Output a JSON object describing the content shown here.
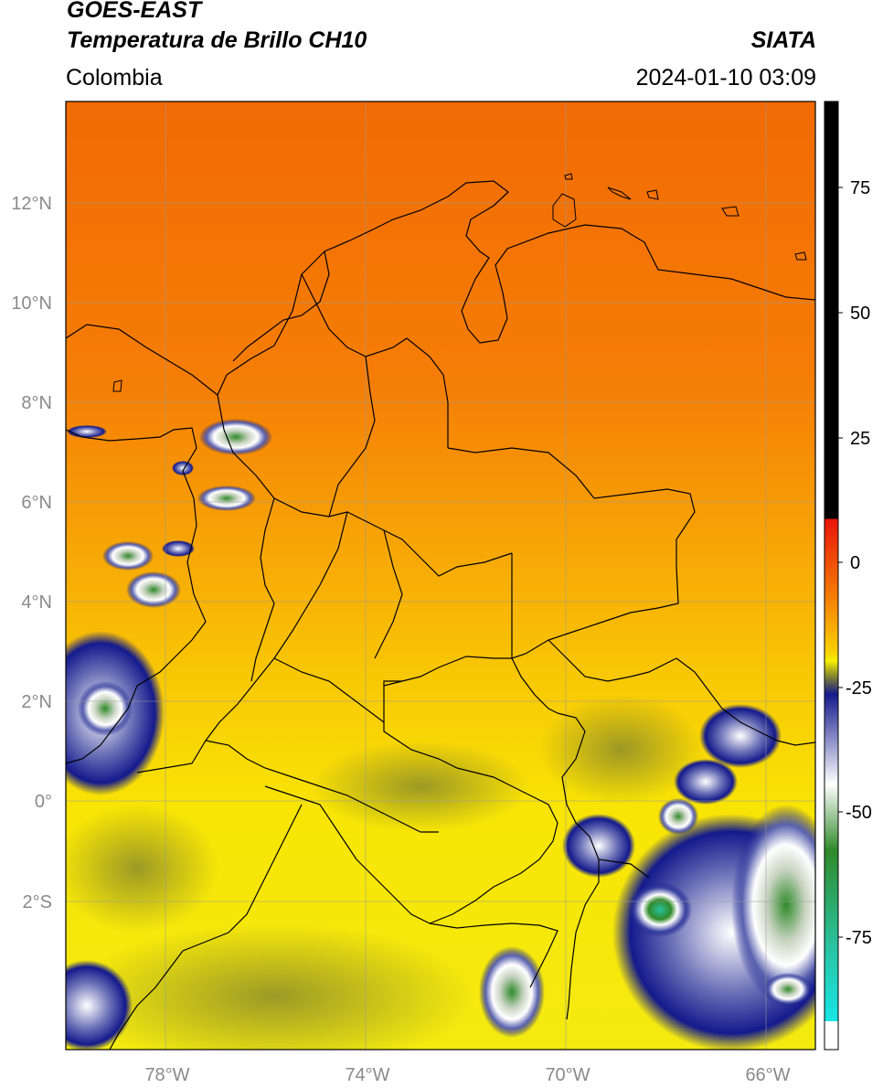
{
  "header": {
    "satellite": "GOES-EAST",
    "product": "Temperatura de Brillo CH10",
    "region": "Colombia",
    "agency": "SIATA",
    "datetime": "2024-01-10 03:09"
  },
  "map": {
    "lon_range": [
      -80,
      -65
    ],
    "lat_range": [
      -5,
      14
    ],
    "lat_ticks": [
      {
        "value": 12,
        "label": "12°N"
      },
      {
        "value": 10,
        "label": "10°N"
      },
      {
        "value": 8,
        "label": "8°N"
      },
      {
        "value": 6,
        "label": "6°N"
      },
      {
        "value": 4,
        "label": "4°N"
      },
      {
        "value": 2,
        "label": "2°N"
      },
      {
        "value": 0,
        "label": "0°"
      },
      {
        "value": -2,
        "label": "2°S"
      }
    ],
    "lon_ticks": [
      {
        "value": -78,
        "label": "78°W"
      },
      {
        "value": -74,
        "label": "74°W"
      },
      {
        "value": -70,
        "label": "70°W"
      },
      {
        "value": -66,
        "label": "66°W"
      }
    ],
    "gridlines": true
  },
  "colorbar": {
    "ticks": [
      {
        "value": 75,
        "label": "75"
      },
      {
        "value": 50,
        "label": "50"
      },
      {
        "value": 25,
        "label": "25"
      },
      {
        "value": 0,
        "label": "0"
      },
      {
        "value": -25,
        "label": "-25"
      },
      {
        "value": -50,
        "label": "-50"
      },
      {
        "value": -75,
        "label": "-75"
      }
    ],
    "colors": {
      "black": "#000000",
      "red": "#e8150a",
      "orange": "#f57a06",
      "yellow": "#f8ef05",
      "olive": "#8c8c2a",
      "navy": "#141a8c",
      "white": "#ffffff",
      "green": "#2f8a2a",
      "teal": "#2ac2a0",
      "cyan": "#18e6e6"
    }
  }
}
